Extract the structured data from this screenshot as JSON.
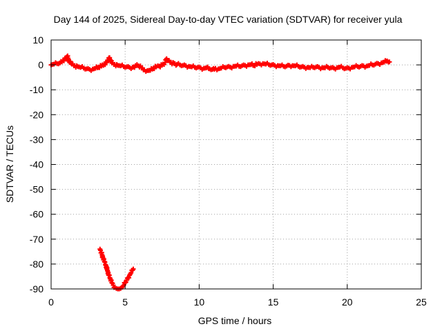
{
  "chart_data": {
    "type": "scatter",
    "title": "Day 144 of 2025, Sidereal Day-to-day VTEC variation (SDTVAR) for receiver yula",
    "xlabel": "GPS time / hours",
    "ylabel": "SDTVAR / TECUs",
    "xlim": [
      0,
      25
    ],
    "ylim": [
      -90,
      10
    ],
    "xticks": [
      0,
      5,
      10,
      15,
      20,
      25
    ],
    "yticks": [
      10,
      0,
      -10,
      -20,
      -30,
      -40,
      -50,
      -60,
      -70,
      -80,
      -90
    ],
    "grid": true,
    "grid_style": "dotted",
    "marker": "plus",
    "colors": {
      "series": "#ff0000",
      "axes": "#000000",
      "grid": "#a0a0a0"
    },
    "series": [
      {
        "values": [
          [
            0.0,
            0.0
          ],
          [
            0.2,
            0.3
          ],
          [
            0.4,
            0.5
          ],
          [
            0.6,
            0.8
          ],
          [
            0.8,
            1.8
          ],
          [
            1.0,
            2.8
          ],
          [
            1.1,
            3.5
          ],
          [
            1.2,
            1.5
          ],
          [
            1.4,
            0.3
          ],
          [
            1.6,
            -0.3
          ],
          [
            1.8,
            -0.7
          ],
          [
            2.0,
            -1.0
          ],
          [
            2.2,
            -1.3
          ],
          [
            2.4,
            -1.6
          ],
          [
            2.6,
            -1.8
          ],
          [
            2.8,
            -1.7
          ],
          [
            3.0,
            -1.4
          ],
          [
            3.2,
            -1.0
          ],
          [
            3.4,
            -0.5
          ],
          [
            3.6,
            0.3
          ],
          [
            3.8,
            1.5
          ],
          [
            3.9,
            2.8
          ],
          [
            4.0,
            2.0
          ],
          [
            4.1,
            0.8
          ],
          [
            4.3,
            0.2
          ],
          [
            4.5,
            -0.2
          ],
          [
            4.7,
            -0.4
          ],
          [
            4.9,
            -0.7
          ],
          [
            5.1,
            -0.8
          ],
          [
            5.3,
            -1.0
          ],
          [
            5.5,
            -1.0
          ],
          [
            5.7,
            -0.3
          ],
          [
            5.9,
            -0.4
          ],
          [
            6.1,
            -1.2
          ],
          [
            6.3,
            -2.0
          ],
          [
            6.5,
            -2.3
          ],
          [
            6.7,
            -2.2
          ],
          [
            6.9,
            -1.5
          ],
          [
            7.1,
            -0.8
          ],
          [
            7.3,
            -0.5
          ],
          [
            7.5,
            0.0
          ],
          [
            7.7,
            1.0
          ],
          [
            7.8,
            2.5
          ],
          [
            7.9,
            1.8
          ],
          [
            8.1,
            1.0
          ],
          [
            8.3,
            0.6
          ],
          [
            8.5,
            0.2
          ],
          [
            8.7,
            0.0
          ],
          [
            8.9,
            -0.2
          ],
          [
            9.1,
            -0.3
          ],
          [
            9.3,
            -0.6
          ],
          [
            9.5,
            -0.8
          ],
          [
            9.7,
            -1.0
          ],
          [
            9.9,
            -1.0
          ],
          [
            10.1,
            -1.2
          ],
          [
            10.3,
            -1.4
          ],
          [
            10.5,
            -1.2
          ],
          [
            10.7,
            -1.6
          ],
          [
            10.9,
            -1.8
          ],
          [
            11.1,
            -1.4
          ],
          [
            11.3,
            -1.6
          ],
          [
            11.5,
            -1.3
          ],
          [
            11.7,
            -1.0
          ],
          [
            11.9,
            -0.8
          ],
          [
            12.1,
            -0.9
          ],
          [
            12.3,
            -0.6
          ],
          [
            12.5,
            -0.5
          ],
          [
            12.7,
            -0.6
          ],
          [
            12.9,
            -0.3
          ],
          [
            13.1,
            -0.2
          ],
          [
            13.3,
            0.0
          ],
          [
            13.5,
            0.1
          ],
          [
            13.7,
            -0.3
          ],
          [
            13.9,
            0.2
          ],
          [
            14.1,
            0.4
          ],
          [
            14.3,
            0.5
          ],
          [
            14.5,
            0.3
          ],
          [
            14.7,
            0.1
          ],
          [
            14.9,
            0.0
          ],
          [
            15.1,
            -0.2
          ],
          [
            15.3,
            -0.3
          ],
          [
            15.5,
            -0.4
          ],
          [
            15.7,
            -0.6
          ],
          [
            15.9,
            -0.5
          ],
          [
            16.1,
            -0.2
          ],
          [
            16.3,
            -0.3
          ],
          [
            16.5,
            -0.4
          ],
          [
            16.7,
            -0.6
          ],
          [
            16.9,
            -0.8
          ],
          [
            17.1,
            -0.9
          ],
          [
            17.3,
            -1.0
          ],
          [
            17.5,
            -1.1
          ],
          [
            17.7,
            -1.0
          ],
          [
            17.9,
            -0.8
          ],
          [
            18.1,
            -1.0
          ],
          [
            18.3,
            -1.1
          ],
          [
            18.5,
            -1.2
          ],
          [
            18.7,
            -1.0
          ],
          [
            18.9,
            -1.2
          ],
          [
            19.1,
            -1.3
          ],
          [
            19.3,
            -1.1
          ],
          [
            19.5,
            -0.9
          ],
          [
            19.7,
            -1.2
          ],
          [
            19.9,
            -1.4
          ],
          [
            20.1,
            -1.3
          ],
          [
            20.3,
            -1.0
          ],
          [
            20.5,
            -0.8
          ],
          [
            20.7,
            -0.7
          ],
          [
            20.9,
            -0.6
          ],
          [
            21.1,
            -0.4
          ],
          [
            21.3,
            -0.5
          ],
          [
            21.5,
            -0.2
          ],
          [
            21.7,
            0.0
          ],
          [
            21.9,
            0.3
          ],
          [
            22.1,
            0.5
          ],
          [
            22.3,
            0.8
          ],
          [
            22.5,
            1.1
          ],
          [
            22.7,
            1.6
          ],
          [
            22.85,
            1.2
          ]
        ]
      },
      {
        "values": [
          [
            3.3,
            -74
          ],
          [
            3.4,
            -75.5
          ],
          [
            3.5,
            -77.5
          ],
          [
            3.6,
            -79
          ],
          [
            3.7,
            -80.5
          ],
          [
            3.8,
            -82.5
          ],
          [
            3.9,
            -84.5
          ],
          [
            4.0,
            -86
          ],
          [
            4.1,
            -87.5
          ],
          [
            4.2,
            -88.5
          ],
          [
            4.3,
            -89.3
          ],
          [
            4.4,
            -89.8
          ],
          [
            4.5,
            -90
          ],
          [
            4.6,
            -90
          ],
          [
            4.7,
            -89.8
          ],
          [
            4.8,
            -89.3
          ],
          [
            4.9,
            -88.5
          ],
          [
            5.0,
            -87.5
          ],
          [
            5.1,
            -86.5
          ],
          [
            5.2,
            -85.5
          ],
          [
            5.3,
            -84.5
          ],
          [
            5.4,
            -83.5
          ],
          [
            5.5,
            -82.5
          ],
          [
            5.55,
            -82
          ]
        ]
      }
    ]
  }
}
